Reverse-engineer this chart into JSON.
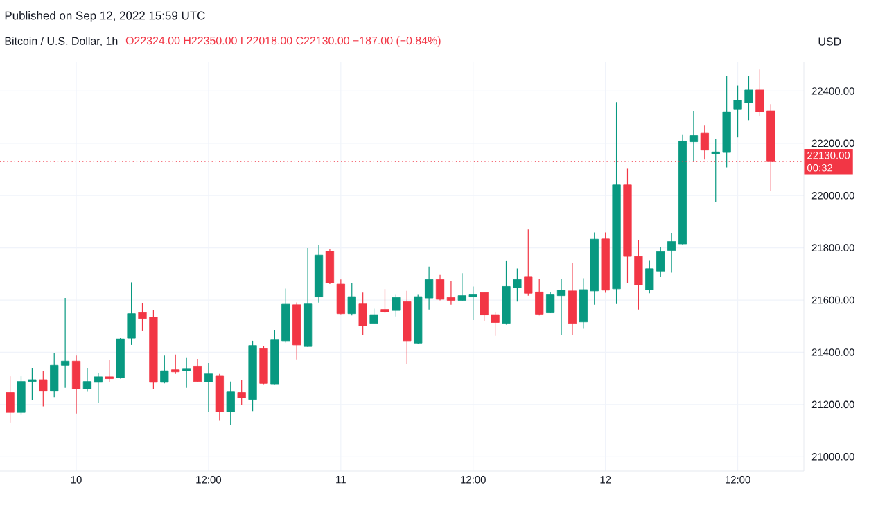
{
  "chart_data": {
    "type": "candlestick",
    "title": "Bitcoin / U.S. Dollar, 1h",
    "subtitle": "O22324.00 H22350.00 L22018.00 C22130.00 −187.00 (−0.84%)",
    "ylabel": "USD",
    "annotations": [
      "Published on Sep 12, 2022 15:59 UTC",
      "00:32"
    ],
    "x": [
      "2022-09-09T18:00",
      "2022-09-09T19:00",
      "2022-09-09T20:00",
      "2022-09-09T21:00",
      "2022-09-09T22:00",
      "2022-09-09T23:00",
      "2022-09-10T00:00",
      "2022-09-10T01:00",
      "2022-09-10T02:00",
      "2022-09-10T03:00",
      "2022-09-10T04:00",
      "2022-09-10T05:00",
      "2022-09-10T06:00",
      "2022-09-10T07:00",
      "2022-09-10T08:00",
      "2022-09-10T09:00",
      "2022-09-10T10:00",
      "2022-09-10T11:00",
      "2022-09-10T12:00",
      "2022-09-10T13:00",
      "2022-09-10T14:00",
      "2022-09-10T15:00",
      "2022-09-10T16:00",
      "2022-09-10T17:00",
      "2022-09-10T18:00",
      "2022-09-10T19:00",
      "2022-09-10T20:00",
      "2022-09-10T21:00",
      "2022-09-10T22:00",
      "2022-09-10T23:00",
      "2022-09-11T00:00",
      "2022-09-11T01:00",
      "2022-09-11T02:00",
      "2022-09-11T03:00",
      "2022-09-11T04:00",
      "2022-09-11T05:00",
      "2022-09-11T06:00",
      "2022-09-11T07:00",
      "2022-09-11T08:00",
      "2022-09-11T09:00",
      "2022-09-11T10:00",
      "2022-09-11T11:00",
      "2022-09-11T12:00",
      "2022-09-11T13:00",
      "2022-09-11T14:00",
      "2022-09-11T15:00",
      "2022-09-11T16:00",
      "2022-09-11T17:00",
      "2022-09-11T18:00",
      "2022-09-11T19:00",
      "2022-09-11T20:00",
      "2022-09-11T21:00",
      "2022-09-11T22:00",
      "2022-09-11T23:00",
      "2022-09-12T00:00",
      "2022-09-12T01:00",
      "2022-09-12T02:00",
      "2022-09-12T03:00",
      "2022-09-12T04:00",
      "2022-09-12T05:00",
      "2022-09-12T06:00",
      "2022-09-12T07:00",
      "2022-09-12T08:00",
      "2022-09-12T09:00",
      "2022-09-12T10:00",
      "2022-09-12T11:00",
      "2022-09-12T12:00",
      "2022-09-12T13:00",
      "2022-09-12T14:00",
      "2022-09-12T15:00"
    ],
    "ohlc": [
      [
        21246,
        21308,
        21131,
        21170
      ],
      [
        21170,
        21308,
        21161,
        21288
      ],
      [
        21288,
        21340,
        21218,
        21295
      ],
      [
        21295,
        21329,
        21193,
        21251
      ],
      [
        21251,
        21396,
        21228,
        21350
      ],
      [
        21350,
        21608,
        21264,
        21366
      ],
      [
        21366,
        21387,
        21166,
        21260
      ],
      [
        21260,
        21340,
        21249,
        21288
      ],
      [
        21285,
        21320,
        21207,
        21306
      ],
      [
        21306,
        21370,
        21285,
        21299
      ],
      [
        21302,
        21454,
        21299,
        21451
      ],
      [
        21454,
        21668,
        21428,
        21548
      ],
      [
        21552,
        21587,
        21481,
        21529
      ],
      [
        21534,
        21561,
        21258,
        21285
      ],
      [
        21285,
        21387,
        21281,
        21329
      ],
      [
        21333,
        21391,
        21317,
        21325
      ],
      [
        21329,
        21378,
        21264,
        21338
      ],
      [
        21347,
        21375,
        21285,
        21288
      ],
      [
        21287,
        21359,
        21173,
        21317
      ],
      [
        21311,
        21317,
        21140,
        21173
      ],
      [
        21173,
        21288,
        21122,
        21248
      ],
      [
        21246,
        21294,
        21198,
        21226
      ],
      [
        21219,
        21444,
        21175,
        21426
      ],
      [
        21414,
        21423,
        21278,
        21281
      ],
      [
        21279,
        21485,
        21278,
        21447
      ],
      [
        21444,
        21644,
        21437,
        21584
      ],
      [
        21582,
        21591,
        21373,
        21428
      ],
      [
        21422,
        21799,
        21420,
        21585
      ],
      [
        21612,
        21811,
        21590,
        21772
      ],
      [
        21787,
        21794,
        21661,
        21666
      ],
      [
        21661,
        21679,
        21546,
        21548
      ],
      [
        21548,
        21666,
        21541,
        21613
      ],
      [
        21585,
        21629,
        21467,
        21502
      ],
      [
        21511,
        21567,
        21507,
        21544
      ],
      [
        21564,
        21642,
        21550,
        21555
      ],
      [
        21560,
        21620,
        21537,
        21610
      ],
      [
        21594,
        21635,
        21355,
        21444
      ],
      [
        21435,
        21620,
        21433,
        21613
      ],
      [
        21608,
        21728,
        21564,
        21679
      ],
      [
        21679,
        21696,
        21599,
        21603
      ],
      [
        21610,
        21673,
        21582,
        21599
      ],
      [
        21599,
        21703,
        21596,
        21617
      ],
      [
        21612,
        21652,
        21523,
        21620
      ],
      [
        21629,
        21632,
        21520,
        21543
      ],
      [
        21544,
        21555,
        21463,
        21514
      ],
      [
        21511,
        21749,
        21506,
        21652
      ],
      [
        21647,
        21721,
        21594,
        21679
      ],
      [
        21688,
        21870,
        21617,
        21626
      ],
      [
        21631,
        21682,
        21541,
        21546
      ],
      [
        21551,
        21631,
        21550,
        21620
      ],
      [
        21617,
        21682,
        21467,
        21638
      ],
      [
        21635,
        21741,
        21465,
        21511
      ],
      [
        21516,
        21684,
        21490,
        21640
      ],
      [
        21635,
        21859,
        21582,
        21833
      ],
      [
        21834,
        21859,
        21628,
        21638
      ],
      [
        21643,
        22358,
        21585,
        22041
      ],
      [
        22041,
        22103,
        21666,
        21767
      ],
      [
        21767,
        21829,
        21564,
        21658
      ],
      [
        21640,
        21750,
        21626,
        21720
      ],
      [
        21711,
        21803,
        21688,
        21785
      ],
      [
        21790,
        21856,
        21705,
        21824
      ],
      [
        21815,
        22232,
        21811,
        22209
      ],
      [
        22206,
        22324,
        22130,
        22230
      ],
      [
        22239,
        22268,
        22138,
        22174
      ],
      [
        22160,
        22218,
        21974,
        22167
      ],
      [
        22165,
        22457,
        22108,
        22321
      ],
      [
        22329,
        22421,
        22223,
        22365
      ],
      [
        22356,
        22457,
        22289,
        22404
      ],
      [
        22404,
        22483,
        22303,
        22321
      ],
      [
        22324,
        22350,
        22018,
        22130
      ]
    ],
    "colors": [
      "#f23645",
      "#089981",
      "#089981",
      "#f23645",
      "#089981",
      "#089981",
      "#f23645",
      "#089981",
      "#089981",
      "#f23645",
      "#089981",
      "#089981",
      "#f23645",
      "#f23645",
      "#089981",
      "#f23645",
      "#089981",
      "#f23645",
      "#089981",
      "#f23645",
      "#089981",
      "#f23645",
      "#089981",
      "#f23645",
      "#089981",
      "#089981",
      "#f23645",
      "#089981",
      "#089981",
      "#f23645",
      "#f23645",
      "#089981",
      "#f23645",
      "#089981",
      "#f23645",
      "#089981",
      "#f23645",
      "#089981",
      "#089981",
      "#f23645",
      "#f23645",
      "#089981",
      "#089981",
      "#f23645",
      "#f23645",
      "#089981",
      "#089981",
      "#f23645",
      "#f23645",
      "#089981",
      "#089981",
      "#f23645",
      "#089981",
      "#089981",
      "#f23645",
      "#089981",
      "#f23645",
      "#f23645",
      "#089981",
      "#089981",
      "#089981",
      "#089981",
      "#089981",
      "#f23645",
      "#089981",
      "#089981",
      "#089981",
      "#089981",
      "#f23645",
      "#f23645"
    ],
    "xlim": [
      "2022-09-09T17:05",
      "2022-09-12T18:00"
    ],
    "xticks": [
      {
        "value": "2022-09-10",
        "label": "10"
      },
      {
        "value": "2022-09-10T12:00",
        "label": "12:00"
      },
      {
        "value": "2022-09-11",
        "label": "11"
      },
      {
        "value": "2022-09-11T12:00",
        "label": "12:00"
      },
      {
        "value": "2022-09-12",
        "label": "12"
      },
      {
        "value": "2022-09-12T12:00",
        "label": "12:00"
      }
    ],
    "ylim": [
      20945,
      22510
    ],
    "yticks": [
      {
        "value": 21000,
        "label": "21000.00"
      },
      {
        "value": 21200,
        "label": "21200.00"
      },
      {
        "value": 21400,
        "label": "21400.00"
      },
      {
        "value": 21600,
        "label": "21600.00"
      },
      {
        "value": 21800,
        "label": "21800.00"
      },
      {
        "value": 22000,
        "label": "22000.00"
      },
      {
        "value": 22200,
        "label": "22200.00"
      },
      {
        "value": 22400,
        "label": "22400.00"
      }
    ],
    "grid": true,
    "ref_lines": [
      {
        "axis": "y",
        "value": 22130,
        "label": "22130.00",
        "color": "#f23645",
        "line_style": "dotted"
      }
    ]
  }
}
